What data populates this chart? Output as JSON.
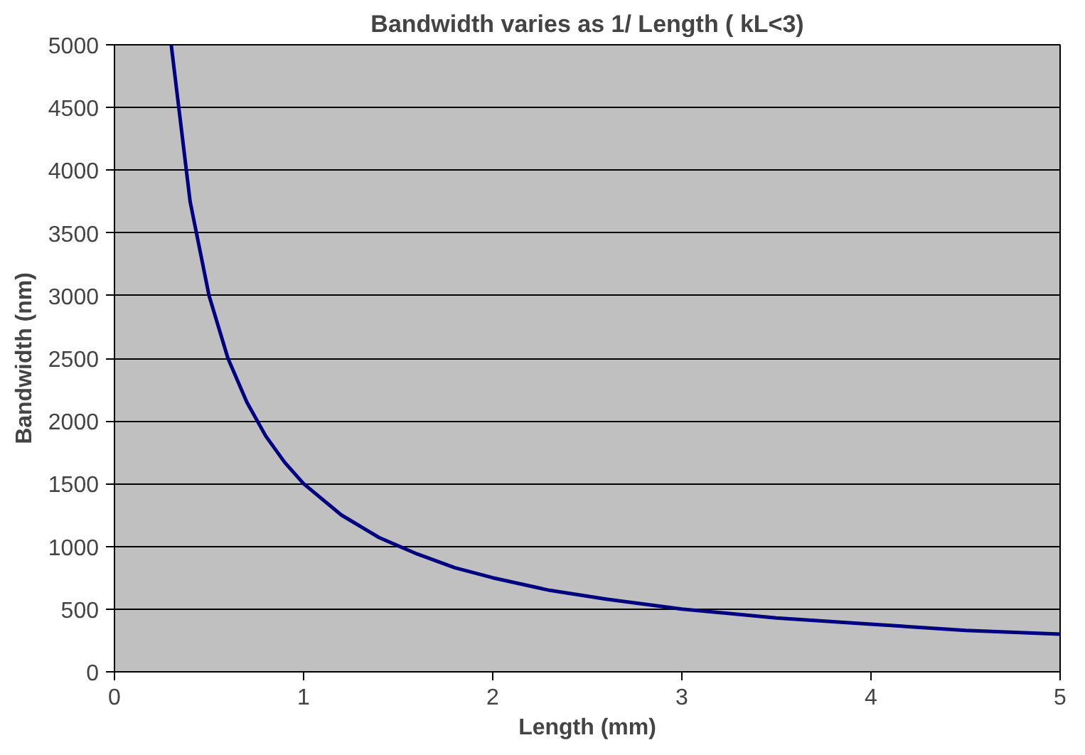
{
  "chart_data": {
    "type": "line",
    "title": "Bandwidth varies as 1/ Length ( kL<3)",
    "xlabel": "Length (mm)",
    "ylabel": "Bandwidth (nm)",
    "x": [
      0.3,
      0.4,
      0.5,
      0.6,
      0.7,
      0.8,
      0.9,
      1.0,
      1.2,
      1.4,
      1.6,
      1.8,
      2.0,
      2.3,
      2.6,
      3.0,
      3.5,
      4.0,
      4.5,
      5.0
    ],
    "series": [
      {
        "color": "#000080",
        "values": [
          5000,
          3750,
          3000,
          2500,
          2150,
          1880,
          1670,
          1500,
          1250,
          1070,
          940,
          830,
          750,
          650,
          580,
          500,
          430,
          380,
          330,
          300
        ]
      }
    ],
    "xlim": [
      0,
      5
    ],
    "ylim": [
      0,
      5000
    ],
    "xticks": [
      0,
      1,
      2,
      3,
      4,
      5
    ],
    "yticks": [
      0,
      500,
      1000,
      1500,
      2000,
      2500,
      3000,
      3500,
      4000,
      4500,
      5000
    ],
    "grid": "y",
    "marker": "none",
    "line_style": "solid"
  }
}
